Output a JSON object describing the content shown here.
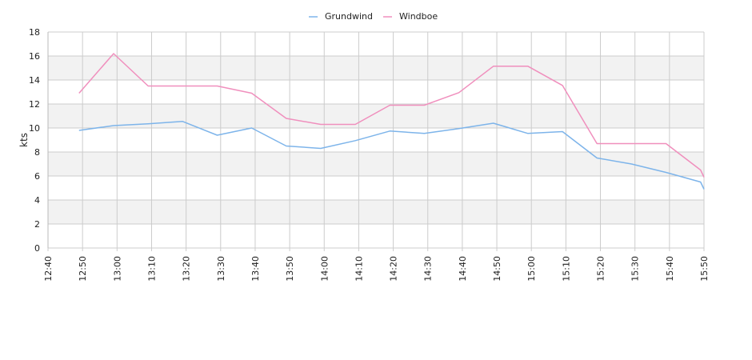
{
  "chart_data": {
    "type": "line",
    "title": "",
    "xlabel": "",
    "ylabel": "kts",
    "ylim": [
      0,
      18
    ],
    "yticks": [
      0,
      2,
      4,
      6,
      8,
      10,
      12,
      14,
      16,
      18
    ],
    "grid": true,
    "legend_position": "top-center",
    "x_tick_labels": [
      "12:40",
      "12:50",
      "13:00",
      "13:10",
      "13:20",
      "13:30",
      "13:40",
      "13:50",
      "14:00",
      "14:10",
      "14:20",
      "14:30",
      "14:40",
      "14:50",
      "15:00",
      "15:10",
      "15:20",
      "15:30",
      "15:40",
      "15:50"
    ],
    "series": [
      {
        "name": "Grundwind",
        "color": "#7db4ea",
        "points": [
          [
            "12:49",
            9.8
          ],
          [
            "12:59",
            10.2
          ],
          [
            "13:09",
            10.35
          ],
          [
            "13:19",
            10.55
          ],
          [
            "13:29",
            9.4
          ],
          [
            "13:39",
            10.0
          ],
          [
            "13:49",
            8.5
          ],
          [
            "13:59",
            8.3
          ],
          [
            "14:09",
            8.95
          ],
          [
            "14:19",
            9.75
          ],
          [
            "14:29",
            9.55
          ],
          [
            "14:39",
            9.95
          ],
          [
            "14:49",
            10.4
          ],
          [
            "14:59",
            9.55
          ],
          [
            "15:09",
            9.7
          ],
          [
            "15:19",
            7.5
          ],
          [
            "15:29",
            7.0
          ],
          [
            "15:39",
            6.3
          ],
          [
            "15:49",
            5.5
          ],
          [
            "15:50",
            4.9
          ]
        ]
      },
      {
        "name": "Windboe",
        "color": "#f08fbd",
        "points": [
          [
            "12:49",
            12.9
          ],
          [
            "12:59",
            16.2
          ],
          [
            "13:09",
            13.5
          ],
          [
            "13:19",
            13.5
          ],
          [
            "13:29",
            13.5
          ],
          [
            "13:39",
            12.9
          ],
          [
            "13:49",
            10.8
          ],
          [
            "13:59",
            10.3
          ],
          [
            "14:09",
            10.3
          ],
          [
            "14:19",
            11.9
          ],
          [
            "14:29",
            11.9
          ],
          [
            "14:39",
            12.95
          ],
          [
            "14:49",
            15.15
          ],
          [
            "14:59",
            15.15
          ],
          [
            "15:09",
            13.55
          ],
          [
            "15:19",
            8.7
          ],
          [
            "15:29",
            8.7
          ],
          [
            "15:39",
            8.7
          ],
          [
            "15:49",
            6.5
          ],
          [
            "15:50",
            5.9
          ]
        ]
      }
    ]
  },
  "style": {
    "band_color": "#f2f2f2",
    "grid_color": "#cccccc",
    "axis_color": "#bbbbbb"
  }
}
